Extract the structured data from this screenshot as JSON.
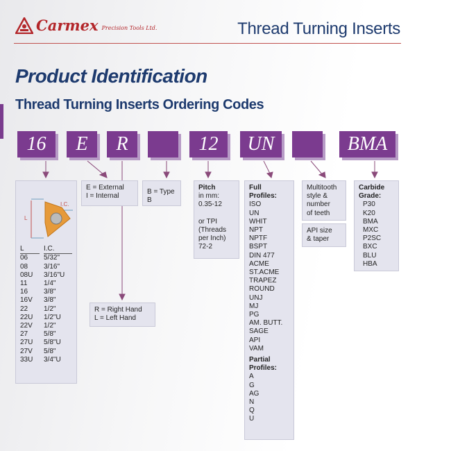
{
  "header": {
    "brand": "Carmex",
    "brand_sub": "Precision Tools Ltd.",
    "title": "Thread Turning Inserts"
  },
  "page": {
    "heading": "Product Identification",
    "subheading": "Thread Turning Inserts Ordering Codes"
  },
  "codes": [
    "16",
    "E",
    "R",
    "",
    "12",
    "UN",
    "",
    "BMA"
  ],
  "size_panel": {
    "diagram_labels": {
      "l": "L",
      "ic": "I.C."
    },
    "col_l": "L",
    "col_ic": "I.C.",
    "rows": [
      [
        "06",
        "5/32\""
      ],
      [
        "08",
        "3/16\""
      ],
      [
        "08U",
        "3/16\"U"
      ],
      [
        "11",
        "1/4\""
      ],
      [
        "16",
        "3/8\""
      ],
      [
        "16V",
        "3/8\""
      ],
      [
        "22",
        "1/2\""
      ],
      [
        "22U",
        "1/2\"U"
      ],
      [
        "22V",
        "1/2\""
      ],
      [
        "27",
        "5/8\""
      ],
      [
        "27U",
        "5/8\"U"
      ],
      [
        "27V",
        "5/8\""
      ],
      [
        "33U",
        "3/4\"U"
      ]
    ]
  },
  "type_panel": {
    "line1": "E = External",
    "line2": "I = Internal"
  },
  "hand_panel": {
    "line1": "R = Right Hand",
    "line2": "L = Left Hand"
  },
  "typeb_panel": {
    "line1": "B = Type B"
  },
  "pitch_panel": {
    "title": "Pitch",
    "line1": "in mm:",
    "line2": "0.35-12",
    "line3": "or TPI",
    "line4": "(Threads",
    "line5": "per Inch)",
    "line6": "72-2"
  },
  "profile_panel": {
    "full_title": "Full Profiles:",
    "full": [
      "ISO",
      "UN",
      "WHIT",
      "NPT",
      "NPTF",
      "BSPT",
      "DIN 477",
      "ACME",
      "ST.ACME",
      "TRAPEZ",
      "ROUND",
      "UNJ",
      "MJ",
      "PG",
      "AM. BUTT.",
      "SAGE",
      "API",
      "VAM"
    ],
    "partial_title": "Partial Profiles:",
    "partial": [
      "A",
      "G",
      "AG",
      "N",
      "Q",
      "U"
    ]
  },
  "multitooth_panel": {
    "line1": "Multitooth",
    "line2": "style &",
    "line3": "number",
    "line4": "of teeth"
  },
  "api_panel": {
    "line1": "API size",
    "line2": "& taper"
  },
  "grade_panel": {
    "title": "Carbide Grade:",
    "grades": [
      "P30",
      "K20",
      "BMA",
      "MXC",
      "P2SC",
      "BXC",
      "BLU",
      "HBA"
    ]
  },
  "colors": {
    "purple": "#7b3b8f",
    "navy": "#1d3a6e",
    "red": "#b3262a"
  }
}
